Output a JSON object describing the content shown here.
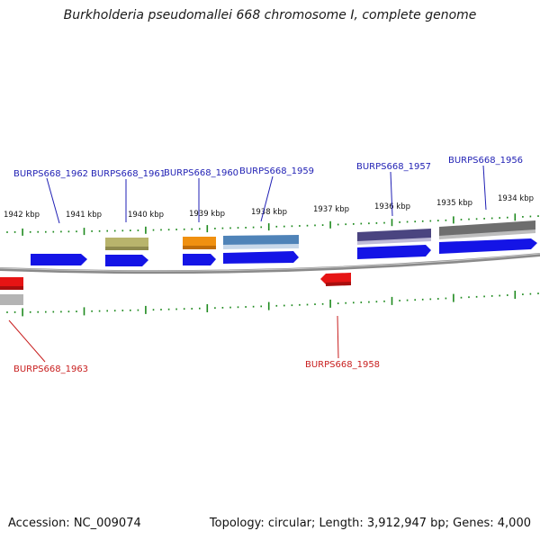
{
  "title": "Burkholderia pseudomallei 668 chromosome I, complete genome",
  "accession": "Accession: NC_009074",
  "topology": "Topology: circular; Length: 3,912,947 bp; Genes: 4,000",
  "colors": {
    "backbone": "#8a8a8a",
    "tick": "#1e8a1e",
    "forward_label": "#1f1fb4",
    "reverse_label": "#c81e1e",
    "cds": "#1414e6",
    "reverse_cds": "#e61414",
    "olive": "#b8b46c",
    "orange": "#f09010",
    "steelblue": "#4f83b8",
    "slate": "#4a4480",
    "gray": "#6e6e6e",
    "lightgray": "#b4b4b4"
  },
  "scale_labels": [
    "1942 kbp",
    "1941 kbp",
    "1940 kbp",
    "1939 kbp",
    "1938 kbp",
    "1937 kbp",
    "1936 kbp",
    "1935 kbp",
    "1934 kbp"
  ],
  "gene_labels": [
    {
      "text": "BURPS668_1962",
      "strand": "forward"
    },
    {
      "text": "BURPS668_1961",
      "strand": "forward"
    },
    {
      "text": "BURPS668_1960",
      "strand": "forward"
    },
    {
      "text": "BURPS668_1959",
      "strand": "forward"
    },
    {
      "text": "BURPS668_1957",
      "strand": "forward"
    },
    {
      "text": "BURPS668_1956",
      "strand": "forward"
    },
    {
      "text": "BURPS668_1963",
      "strand": "reverse"
    },
    {
      "text": "BURPS668_1958",
      "strand": "reverse"
    }
  ]
}
